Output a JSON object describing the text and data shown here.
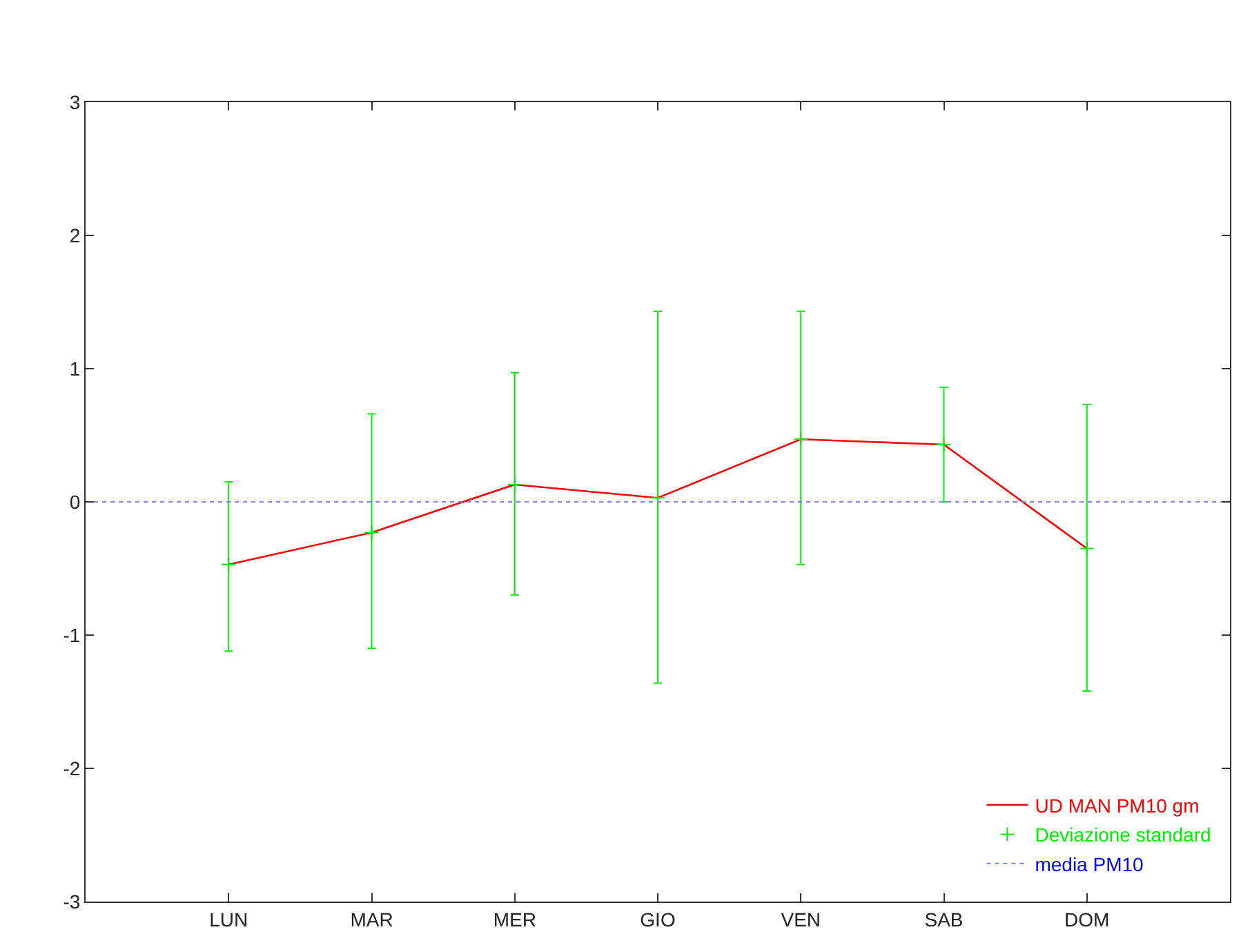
{
  "chart_data": {
    "type": "line",
    "categories": [
      "LUN",
      "MAR",
      "MER",
      "GIO",
      "VEN",
      "SAB",
      "DOM"
    ],
    "ylim": [
      -3,
      3
    ],
    "yticks": [
      -3,
      -2,
      -1,
      0,
      1,
      2,
      3
    ],
    "legend": "bottom right",
    "series": [
      {
        "name": "UD MAN PM10 gm",
        "color": "#ff0000",
        "marker": "none",
        "line_style": "solid",
        "values": [
          -0.47,
          -0.23,
          0.13,
          0.03,
          0.47,
          0.43,
          -0.35
        ]
      },
      {
        "name": "Deviazione standard",
        "color": "#00ee00",
        "type": "scatter",
        "marker": "cross",
        "values": [
          -0.47,
          -0.23,
          0.13,
          0.03,
          0.47,
          0.43,
          -0.35
        ],
        "errors": [
          [
            -1.12,
            0.15
          ],
          [
            -1.1,
            0.66
          ],
          [
            -0.7,
            0.97
          ],
          [
            -1.36,
            1.43
          ],
          [
            -0.47,
            1.43
          ],
          [
            0.0,
            0.86
          ],
          [
            -1.42,
            0.73
          ]
        ]
      }
    ],
    "ref_lines": [
      {
        "axis": "y",
        "value": 0,
        "label": "media PM10",
        "color": "#8080ff",
        "line_style": "dotted"
      }
    ]
  }
}
